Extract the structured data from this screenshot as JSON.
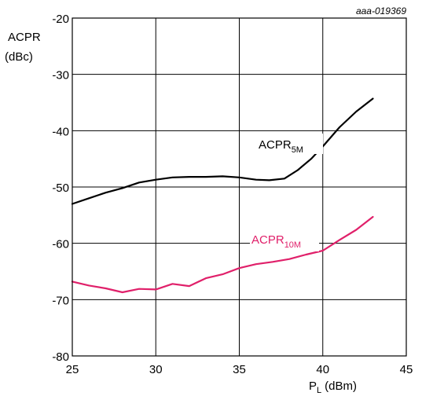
{
  "chart_data": {
    "type": "line",
    "figure_code": "aaa-019369",
    "ylabel": "ACPR",
    "ylabel_unit": "(dBc)",
    "xlabel_main": "P",
    "xlabel_sub": "L",
    "xlabel_unit": "(dBm)",
    "xlim": [
      25,
      45
    ],
    "ylim": [
      -80,
      -20
    ],
    "xticks": [
      25,
      30,
      35,
      40,
      45
    ],
    "yticks": [
      -20,
      -30,
      -40,
      -50,
      -60,
      -70,
      -80
    ],
    "grid": true,
    "series": [
      {
        "name": "ACPR",
        "name_sub": "5M",
        "color": "#000000",
        "x": [
          25,
          26,
          27,
          28,
          29,
          30,
          31,
          32,
          33,
          34,
          35,
          36,
          36.8,
          37.7,
          38.5,
          39.3,
          40,
          41,
          42,
          43
        ],
        "y": [
          -53,
          -52,
          -51,
          -50.2,
          -49.2,
          -48.7,
          -48.3,
          -48.2,
          -48.2,
          -48.1,
          -48.3,
          -48.7,
          -48.8,
          -48.5,
          -47,
          -45,
          -42.8,
          -39.4,
          -36.6,
          -34.3
        ]
      },
      {
        "name": "ACPR",
        "name_sub": "10M",
        "color": "#e0206a",
        "x": [
          25,
          26,
          27,
          28,
          29,
          30,
          31,
          32,
          33,
          34,
          35,
          36,
          37,
          38,
          39,
          40,
          41,
          42,
          43
        ],
        "y": [
          -66.8,
          -67.5,
          -68,
          -68.7,
          -68.1,
          -68.2,
          -67.2,
          -67.6,
          -66.2,
          -65.5,
          -64.4,
          -63.7,
          -63.3,
          -62.8,
          -62,
          -61.3,
          -59.4,
          -57.6,
          -55.3
        ]
      }
    ]
  }
}
